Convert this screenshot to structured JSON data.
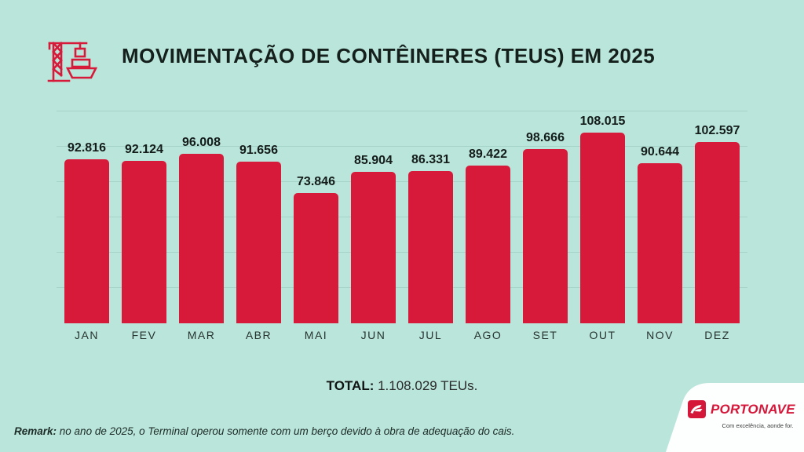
{
  "page": {
    "background_color": "#b9e5da",
    "accent_color": "#d71a3a",
    "text_color": "#15201c"
  },
  "header": {
    "title": "MOVIMENTAÇÃO DE CONTÊINERES (TEUS) EM 2025",
    "icon": "crane-ship-icon",
    "icon_color": "#d71a3a"
  },
  "chart_data": {
    "type": "bar",
    "title": "MOVIMENTAÇÃO DE CONTÊINERES (TEUS) EM 2025",
    "categories": [
      "JAN",
      "FEV",
      "MAR",
      "ABR",
      "MAI",
      "JUN",
      "JUL",
      "AGO",
      "SET",
      "OUT",
      "NOV",
      "DEZ"
    ],
    "values": [
      92816,
      92124,
      96008,
      91656,
      73846,
      85904,
      86331,
      89422,
      98666,
      108015,
      90644,
      102597
    ],
    "value_labels": [
      "92.816",
      "92.124",
      "96.008",
      "91.656",
      "73.846",
      "85.904",
      "86.331",
      "89.422",
      "98.666",
      "108.015",
      "90.644",
      "102.597"
    ],
    "xlabel": "",
    "ylabel": "",
    "ylim": [
      0,
      120000
    ],
    "gridline_interval": 20000,
    "grid": "horizontal-faint",
    "bar_color": "#d71a3a",
    "legend_position": "none"
  },
  "total": {
    "label": "TOTAL:",
    "value": " 1.108.029 TEUs."
  },
  "remark": {
    "label": "Remark:",
    "text": " no ano de 2025, o Terminal operou somente com um berço devido à obra de adequação do cais."
  },
  "footer_logo": {
    "brand": "PORTONAVE",
    "tagline": "Com excelência, aonde for.",
    "brand_color": "#d5183a",
    "icon": "ship-swoosh-icon"
  }
}
